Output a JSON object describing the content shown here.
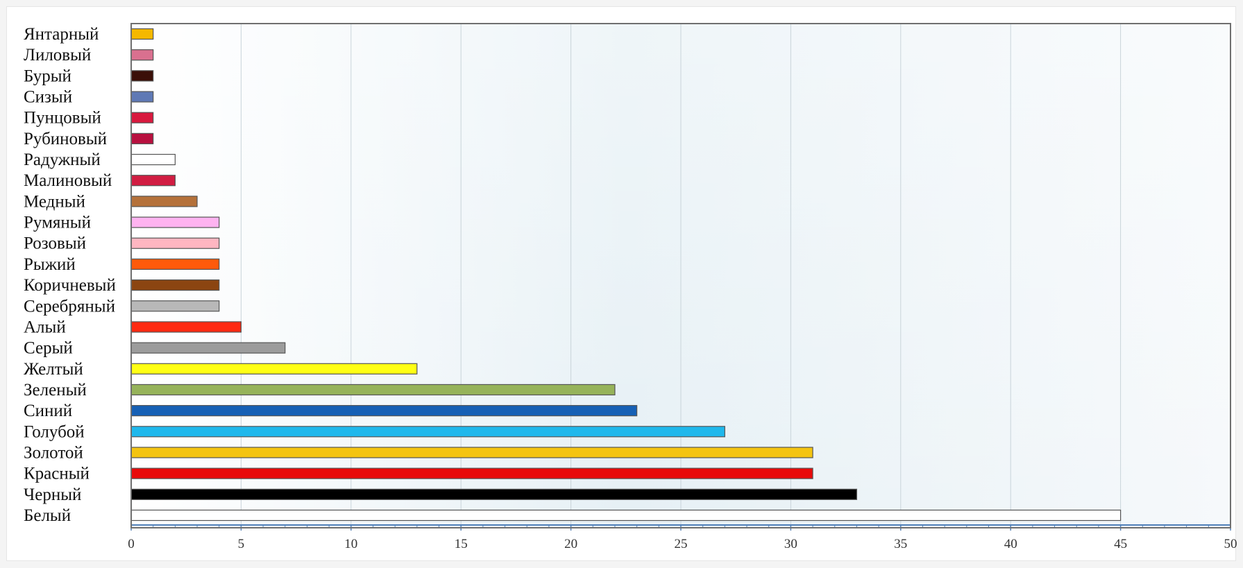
{
  "chart_data": {
    "type": "bar",
    "orientation": "horizontal",
    "title": "",
    "xlabel": "",
    "ylabel": "",
    "xlim": [
      0,
      50
    ],
    "xticks": [
      0,
      5,
      10,
      15,
      20,
      25,
      30,
      35,
      40,
      45,
      50
    ],
    "grid": true,
    "legend": "none",
    "categories": [
      "Янтарный",
      "Лиловый",
      "Бурый",
      "Сизый",
      "Пунцовый",
      "Рубиновый",
      "Радужный",
      "Малиновый",
      "Медный",
      "Румяный",
      "Розовый",
      "Рыжий",
      "Коричневый",
      "Серебряный",
      "Алый",
      "Серый",
      "Желтый",
      "Зеленый",
      "Синий",
      "Голубой",
      "Золотой",
      "Красный",
      "Черный",
      "Белый"
    ],
    "values": [
      1,
      1,
      1,
      1,
      1,
      1,
      2,
      2,
      3,
      4,
      4,
      4,
      4,
      4,
      5,
      7,
      13,
      22,
      23,
      27,
      31,
      31,
      33,
      45
    ],
    "colors": [
      "#f5b800",
      "#d9708f",
      "#3b0f08",
      "#5f79b5",
      "#d8193e",
      "#b8103f",
      "#ffffff",
      "#d11d42",
      "#b5713a",
      "#ffb3f0",
      "#ffb6c1",
      "#ff5a0a",
      "#8b4511",
      "#b8b8b8",
      "#ff2a12",
      "#9c9c9c",
      "#ffff14",
      "#96b35a",
      "#1660b5",
      "#1fb8ec",
      "#f4c411",
      "#e80a0a",
      "#000000",
      "#ffffff"
    ]
  }
}
